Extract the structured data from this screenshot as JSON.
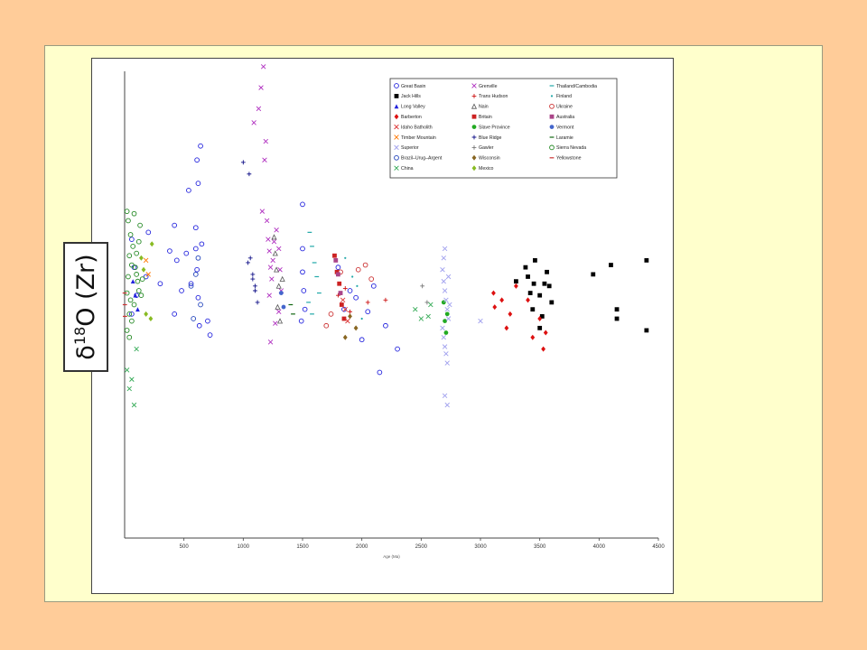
{
  "slide": {
    "background": "#ffcc99",
    "panel_color": "#ffffcc"
  },
  "y_axis_label": "δ18O (Zr)",
  "chart_data": {
    "type": "scatter",
    "xlabel": "Age (Ma)",
    "xlim": [
      0,
      4500
    ],
    "ylim": [
      0,
      20
    ],
    "x_ticks": [
      500,
      1000,
      1500,
      2000,
      2500,
      3000,
      3500,
      4000,
      4500
    ],
    "grid": false,
    "legend_position": "top-right",
    "series": [
      {
        "name": "Great Basin",
        "color": "#2222dd",
        "marker": "circle-open",
        "points": [
          [
            60,
            12.8
          ],
          [
            80,
            11.6
          ],
          [
            100,
            10.4
          ],
          [
            60,
            9.6
          ],
          [
            200,
            13.1
          ],
          [
            180,
            11.2
          ],
          [
            300,
            10.9
          ],
          [
            380,
            12.3
          ],
          [
            420,
            13.4
          ],
          [
            440,
            11.9
          ],
          [
            480,
            10.6
          ],
          [
            520,
            12.2
          ],
          [
            540,
            14.9
          ],
          [
            600,
            13.3
          ],
          [
            600,
            12.4
          ],
          [
            610,
            11.5
          ],
          [
            620,
            10.3
          ],
          [
            630,
            9.1
          ],
          [
            610,
            16.2
          ],
          [
            620,
            15.2
          ],
          [
            640,
            16.8
          ],
          [
            650,
            12.6
          ],
          [
            560,
            10.9
          ],
          [
            420,
            9.6
          ],
          [
            700,
            9.3
          ],
          [
            720,
            8.7
          ],
          [
            1500,
            14.3
          ],
          [
            1500,
            12.4
          ],
          [
            1500,
            11.4
          ],
          [
            1510,
            10.6
          ],
          [
            1520,
            9.8
          ],
          [
            1490,
            9.3
          ],
          [
            1800,
            11.6
          ],
          [
            1850,
            9.8
          ],
          [
            1900,
            10.6
          ],
          [
            1950,
            10.3
          ],
          [
            2000,
            8.5
          ],
          [
            2050,
            9.7
          ],
          [
            2100,
            10.8
          ],
          [
            2150,
            7.1
          ],
          [
            2200,
            9.1
          ],
          [
            2300,
            8.1
          ]
        ]
      },
      {
        "name": "Grenville",
        "color": "#b030c0",
        "marker": "x",
        "points": [
          [
            1090,
            17.8
          ],
          [
            1130,
            18.4
          ],
          [
            1150,
            19.3
          ],
          [
            1170,
            20.2
          ],
          [
            1180,
            16.2
          ],
          [
            1190,
            17.0
          ],
          [
            1160,
            14.0
          ],
          [
            1200,
            13.6
          ],
          [
            1210,
            12.8
          ],
          [
            1220,
            12.3
          ],
          [
            1230,
            11.6
          ],
          [
            1240,
            11.1
          ],
          [
            1250,
            11.9
          ],
          [
            1260,
            12.7
          ],
          [
            1280,
            13.2
          ],
          [
            1300,
            12.4
          ],
          [
            1310,
            11.5
          ],
          [
            1320,
            10.6
          ],
          [
            1300,
            9.7
          ],
          [
            1270,
            9.2
          ],
          [
            1220,
            10.4
          ],
          [
            1230,
            8.4
          ]
        ]
      },
      {
        "name": "Thailand/Cambodia",
        "color": "#20a8a8",
        "marker": "dash",
        "points": [
          [
            1560,
            13.1
          ],
          [
            1580,
            12.5
          ],
          [
            1600,
            11.8
          ],
          [
            1620,
            11.2
          ],
          [
            1640,
            10.5
          ],
          [
            1550,
            10.1
          ],
          [
            1580,
            9.6
          ]
        ]
      },
      {
        "name": "Jack Hills",
        "color": "#000000",
        "marker": "square-filled",
        "points": [
          [
            3300,
            11.0
          ],
          [
            3380,
            11.6
          ],
          [
            3400,
            11.2
          ],
          [
            3420,
            10.5
          ],
          [
            3440,
            9.8
          ],
          [
            3450,
            10.9
          ],
          [
            3460,
            11.9
          ],
          [
            3500,
            10.4
          ],
          [
            3520,
            9.5
          ],
          [
            3540,
            10.9
          ],
          [
            3560,
            11.4
          ],
          [
            3580,
            10.8
          ],
          [
            3500,
            9.0
          ],
          [
            3600,
            10.1
          ],
          [
            3950,
            11.3
          ],
          [
            4100,
            11.7
          ],
          [
            4150,
            9.8
          ],
          [
            4150,
            9.4
          ],
          [
            4400,
            11.9
          ],
          [
            4400,
            8.9
          ]
        ]
      },
      {
        "name": "Trans Hudson",
        "color": "#cc1111",
        "marker": "plus",
        "points": [
          [
            1800,
            10.4
          ],
          [
            1860,
            10.7
          ],
          [
            1900,
            9.7
          ],
          [
            2050,
            10.1
          ],
          [
            2200,
            10.2
          ]
        ]
      },
      {
        "name": "Finland",
        "color": "#20a8a8",
        "marker": "dot",
        "points": [
          [
            1860,
            12.0
          ],
          [
            1920,
            11.2
          ],
          [
            1960,
            10.8
          ],
          [
            2000,
            9.4
          ]
        ]
      },
      {
        "name": "Long Valley",
        "color": "#2222dd",
        "marker": "triangle-filled",
        "points": [
          [
            70,
            11.0
          ],
          [
            90,
            10.4
          ],
          [
            110,
            9.8
          ]
        ]
      },
      {
        "name": "Nain",
        "color": "#555555",
        "marker": "triangle-open",
        "points": [
          [
            1260,
            12.9
          ],
          [
            1270,
            12.2
          ],
          [
            1280,
            11.5
          ],
          [
            1300,
            10.8
          ],
          [
            1290,
            9.9
          ],
          [
            1310,
            9.3
          ],
          [
            1330,
            11.1
          ]
        ]
      },
      {
        "name": "Ukraine",
        "color": "#cc3333",
        "marker": "circle-open",
        "points": [
          [
            1970,
            11.5
          ],
          [
            2030,
            11.7
          ],
          [
            2080,
            11.1
          ],
          [
            1820,
            11.4
          ],
          [
            1700,
            9.1
          ],
          [
            1740,
            9.6
          ]
        ]
      },
      {
        "name": "Barberton",
        "color": "#dd1111",
        "marker": "diamond-filled",
        "points": [
          [
            3110,
            10.5
          ],
          [
            3120,
            9.9
          ],
          [
            3180,
            10.2
          ],
          [
            3220,
            9.0
          ],
          [
            3250,
            9.6
          ],
          [
            3300,
            10.8
          ],
          [
            3400,
            10.2
          ],
          [
            3440,
            8.6
          ],
          [
            3500,
            9.4
          ],
          [
            3530,
            8.1
          ],
          [
            3550,
            8.8
          ]
        ]
      },
      {
        "name": "Britain",
        "color": "#cc2222",
        "marker": "square-filled",
        "points": [
          [
            1770,
            12.1
          ],
          [
            1790,
            11.4
          ],
          [
            1810,
            10.9
          ],
          [
            1830,
            10.0
          ],
          [
            1850,
            9.4
          ]
        ]
      },
      {
        "name": "Australia",
        "color": "#aa4488",
        "marker": "square-filled",
        "points": [
          [
            1780,
            11.9
          ],
          [
            1800,
            11.3
          ],
          [
            1820,
            10.5
          ]
        ]
      },
      {
        "name": "Idaho Batholith",
        "color": "#dd3333",
        "marker": "x",
        "points": [
          [
            1840,
            10.2
          ],
          [
            1860,
            9.8
          ],
          [
            1880,
            9.3
          ]
        ]
      },
      {
        "name": "Slave Province",
        "color": "#22aa22",
        "marker": "circle-filled",
        "points": [
          [
            2700,
            9.3
          ],
          [
            2710,
            8.8
          ],
          [
            2720,
            9.6
          ],
          [
            2690,
            10.1
          ]
        ]
      },
      {
        "name": "Vermont",
        "color": "#4466cc",
        "marker": "circle-filled",
        "points": [
          [
            1320,
            10.5
          ],
          [
            1340,
            9.9
          ]
        ]
      },
      {
        "name": "Timber Mountain",
        "color": "#ff7700",
        "marker": "x",
        "points": [
          [
            180,
            11.9
          ],
          [
            200,
            11.3
          ]
        ]
      },
      {
        "name": "Blue Ridge",
        "color": "#111188",
        "marker": "plus",
        "points": [
          [
            1000,
            16.1
          ],
          [
            1050,
            15.6
          ],
          [
            1060,
            12.0
          ],
          [
            1080,
            11.3
          ],
          [
            1100,
            10.6
          ],
          [
            1120,
            10.1
          ],
          [
            1040,
            11.8
          ],
          [
            1080,
            11.1
          ],
          [
            1100,
            10.8
          ]
        ]
      },
      {
        "name": "Laramie",
        "color": "#116611",
        "marker": "dash",
        "points": [
          [
            1400,
            10.0
          ],
          [
            1420,
            9.6
          ]
        ]
      },
      {
        "name": "Superior",
        "color": "#a0a0ee",
        "marker": "x",
        "points": [
          [
            2680,
            11.5
          ],
          [
            2690,
            11.0
          ],
          [
            2700,
            10.6
          ],
          [
            2710,
            10.2
          ],
          [
            2720,
            9.8
          ],
          [
            2730,
            9.4
          ],
          [
            2680,
            9.0
          ],
          [
            2690,
            8.6
          ],
          [
            2700,
            8.2
          ],
          [
            2710,
            7.9
          ],
          [
            2720,
            7.5
          ],
          [
            2700,
            6.1
          ],
          [
            2720,
            5.7
          ],
          [
            2690,
            12.0
          ],
          [
            2700,
            12.4
          ],
          [
            2730,
            11.2
          ],
          [
            2740,
            10.0
          ],
          [
            3000,
            9.3
          ]
        ]
      },
      {
        "name": "Gawler",
        "color": "#777777",
        "marker": "plus",
        "points": [
          [
            2510,
            10.8
          ],
          [
            2550,
            10.1
          ]
        ]
      },
      {
        "name": "Sierra Nevada",
        "color": "#228822",
        "marker": "circle-open",
        "points": [
          [
            20,
            10.5
          ],
          [
            30,
            11.2
          ],
          [
            40,
            12.1
          ],
          [
            50,
            13.0
          ],
          [
            20,
            14.0
          ],
          [
            30,
            13.6
          ],
          [
            40,
            9.6
          ],
          [
            50,
            10.2
          ],
          [
            60,
            11.7
          ],
          [
            70,
            12.5
          ],
          [
            80,
            10.0
          ],
          [
            90,
            11.6
          ],
          [
            100,
            12.2
          ],
          [
            110,
            11.0
          ],
          [
            120,
            10.6
          ],
          [
            130,
            13.4
          ],
          [
            20,
            8.9
          ],
          [
            40,
            8.6
          ],
          [
            60,
            9.3
          ],
          [
            80,
            13.9
          ],
          [
            100,
            11.3
          ],
          [
            120,
            12.7
          ],
          [
            140,
            10.4
          ],
          [
            150,
            11.1
          ]
        ]
      },
      {
        "name": "Brazil–Urug–Argent",
        "color": "#2244bb",
        "marker": "circle-open",
        "points": [
          [
            560,
            10.8
          ],
          [
            600,
            11.3
          ],
          [
            620,
            12.0
          ],
          [
            640,
            10.0
          ],
          [
            580,
            9.4
          ]
        ]
      },
      {
        "name": "Wisconsin",
        "color": "#886622",
        "marker": "diamond-filled",
        "points": [
          [
            1860,
            8.6
          ],
          [
            1900,
            9.5
          ],
          [
            1950,
            9.0
          ]
        ]
      },
      {
        "name": "Yellowstone",
        "color": "#cc3333",
        "marker": "dash",
        "points": [
          [
            1,
            10.5
          ],
          [
            2,
            10.0
          ],
          [
            3,
            9.5
          ]
        ]
      },
      {
        "name": "China",
        "color": "#33aa55",
        "marker": "x",
        "points": [
          [
            20,
            7.2
          ],
          [
            40,
            6.4
          ],
          [
            60,
            6.8
          ],
          [
            80,
            5.7
          ],
          [
            100,
            8.1
          ],
          [
            2450,
            9.8
          ],
          [
            2500,
            9.4
          ],
          [
            2560,
            9.5
          ],
          [
            2580,
            10.0
          ]
        ]
      },
      {
        "name": "Mexico",
        "color": "#88bb22",
        "marker": "diamond-filled",
        "points": [
          [
            140,
            12.0
          ],
          [
            160,
            11.5
          ],
          [
            180,
            9.6
          ],
          [
            220,
            9.4
          ],
          [
            230,
            12.6
          ]
        ]
      }
    ]
  }
}
